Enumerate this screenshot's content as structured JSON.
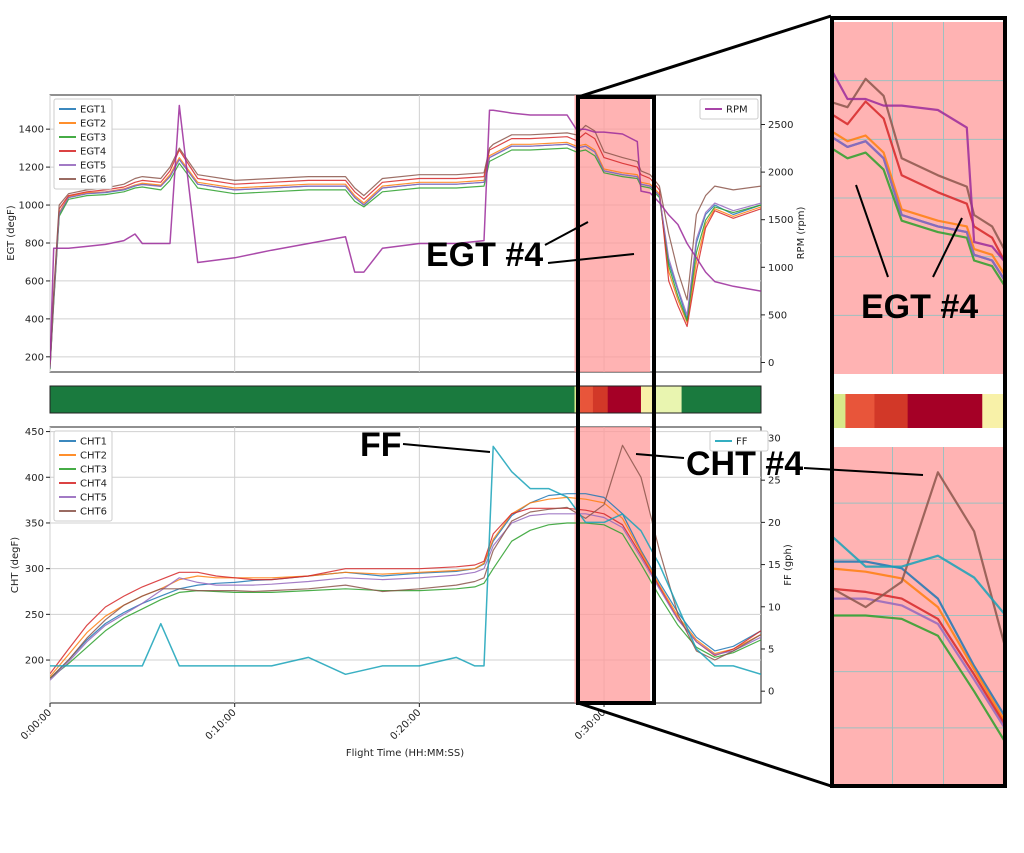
{
  "chart_data": [
    {
      "type": "line",
      "name": "egt-rpm-panel",
      "xlabel": "",
      "ylabel": "EGT (degF)",
      "y2label": "RPM (rpm)",
      "x_unit": "minutes",
      "xlim": [
        0,
        38.5
      ],
      "ylim": [
        120,
        1580
      ],
      "y2lim": [
        -100,
        2810
      ],
      "yticks": [
        200,
        400,
        600,
        800,
        1000,
        1200,
        1400
      ],
      "y2ticks": [
        0,
        500,
        1000,
        1500,
        2000,
        2500
      ],
      "grid": true,
      "legend_left": [
        "EGT1",
        "EGT2",
        "EGT3",
        "EGT4",
        "EGT5",
        "EGT6"
      ],
      "legend_right": [
        "RPM"
      ],
      "highlight_range": [
        28.4,
        32.5
      ],
      "x": [
        0,
        0.2,
        0.5,
        1,
        2,
        3,
        4,
        4.6,
        5,
        6,
        6.5,
        7,
        8,
        10,
        12,
        14,
        16,
        16.5,
        17,
        18,
        20,
        22,
        23.5,
        23.8,
        24,
        25,
        26,
        28,
        28.5,
        29,
        29.5,
        30,
        31,
        31.8,
        32,
        32.5,
        33,
        33.5,
        34,
        34.5,
        35,
        35.5,
        36,
        37,
        38.5
      ],
      "series": [
        {
          "name": "EGT1",
          "color": "#1f77b4",
          "axis": "left",
          "values": [
            140,
            500,
            950,
            1040,
            1060,
            1065,
            1080,
            1100,
            1110,
            1100,
            1150,
            1240,
            1110,
            1080,
            1090,
            1100,
            1100,
            1040,
            1000,
            1090,
            1110,
            1110,
            1120,
            1250,
            1260,
            1310,
            1310,
            1320,
            1300,
            1310,
            1280,
            1180,
            1160,
            1150,
            1110,
            1100,
            1050,
            700,
            550,
            400,
            800,
            950,
            1000,
            950,
            1000
          ]
        },
        {
          "name": "EGT2",
          "color": "#ff7f0e",
          "axis": "left",
          "values": [
            140,
            500,
            960,
            1045,
            1065,
            1070,
            1085,
            1105,
            1115,
            1105,
            1160,
            1250,
            1120,
            1090,
            1100,
            1110,
            1110,
            1050,
            1010,
            1100,
            1120,
            1120,
            1130,
            1260,
            1270,
            1320,
            1320,
            1330,
            1310,
            1320,
            1290,
            1190,
            1170,
            1160,
            1120,
            1110,
            1060,
            650,
            500,
            380,
            700,
            900,
            980,
            940,
            990
          ]
        },
        {
          "name": "EGT3",
          "color": "#2ca02c",
          "axis": "left",
          "values": [
            135,
            480,
            940,
            1030,
            1050,
            1055,
            1070,
            1090,
            1095,
            1080,
            1130,
            1220,
            1090,
            1060,
            1070,
            1080,
            1080,
            1020,
            990,
            1070,
            1090,
            1090,
            1100,
            1230,
            1240,
            1290,
            1290,
            1300,
            1280,
            1290,
            1260,
            1170,
            1150,
            1140,
            1100,
            1090,
            1040,
            680,
            520,
            390,
            750,
            920,
            990,
            960,
            1000
          ]
        },
        {
          "name": "EGT4",
          "color": "#d62728",
          "axis": "left",
          "values": [
            150,
            520,
            980,
            1050,
            1070,
            1080,
            1095,
            1120,
            1130,
            1120,
            1180,
            1290,
            1140,
            1110,
            1120,
            1130,
            1130,
            1070,
            1030,
            1120,
            1140,
            1140,
            1150,
            1290,
            1300,
            1350,
            1350,
            1360,
            1340,
            1380,
            1350,
            1250,
            1220,
            1200,
            1160,
            1140,
            1080,
            600,
            470,
            360,
            650,
            880,
            970,
            930,
            980
          ]
        },
        {
          "name": "EGT5",
          "color": "#9467bd",
          "axis": "left",
          "values": [
            140,
            500,
            955,
            1040,
            1060,
            1068,
            1082,
            1102,
            1108,
            1098,
            1150,
            1240,
            1110,
            1080,
            1090,
            1100,
            1100,
            1040,
            1000,
            1090,
            1110,
            1110,
            1120,
            1250,
            1260,
            1310,
            1310,
            1320,
            1300,
            1310,
            1280,
            1180,
            1160,
            1150,
            1110,
            1100,
            1050,
            720,
            560,
            420,
            820,
            960,
            1010,
            970,
            1010
          ]
        },
        {
          "name": "EGT6",
          "color": "#8c564b",
          "axis": "left",
          "values": [
            160,
            540,
            1000,
            1060,
            1080,
            1090,
            1110,
            1140,
            1150,
            1140,
            1200,
            1300,
            1160,
            1130,
            1140,
            1150,
            1150,
            1090,
            1050,
            1140,
            1160,
            1160,
            1170,
            1300,
            1320,
            1370,
            1370,
            1380,
            1370,
            1420,
            1390,
            1280,
            1250,
            1230,
            1180,
            1160,
            1100,
            850,
            650,
            500,
            950,
            1050,
            1100,
            1080,
            1100
          ]
        },
        {
          "name": "RPM",
          "color": "#9b2a9b",
          "axis": "right",
          "values": [
            0,
            1200,
            1200,
            1200,
            1220,
            1240,
            1280,
            1350,
            1250,
            1250,
            1250,
            2700,
            1050,
            1100,
            1180,
            1250,
            1320,
            950,
            950,
            1200,
            1250,
            1250,
            1280,
            2650,
            2650,
            2620,
            2600,
            2600,
            2450,
            2450,
            2420,
            2420,
            2400,
            2320,
            1800,
            1780,
            1680,
            1550,
            1450,
            1250,
            1100,
            950,
            850,
            800,
            750
          ]
        }
      ],
      "annotations": [
        {
          "text": "EGT #4"
        }
      ]
    },
    {
      "type": "heatmap",
      "name": "anomaly-strip",
      "xlim": [
        0,
        38.5
      ],
      "bands": [
        {
          "from": 0,
          "to": 28.4,
          "color": "#1a7a3e"
        },
        {
          "from": 28.4,
          "to": 28.7,
          "color": "#d8e88a"
        },
        {
          "from": 28.7,
          "to": 29.4,
          "color": "#e8553a"
        },
        {
          "from": 29.4,
          "to": 30.2,
          "color": "#d23828"
        },
        {
          "from": 30.2,
          "to": 32.0,
          "color": "#a50026"
        },
        {
          "from": 32.0,
          "to": 32.8,
          "color": "#f8f1a8"
        },
        {
          "from": 32.8,
          "to": 34.2,
          "color": "#e9f5b0"
        },
        {
          "from": 34.2,
          "to": 38.5,
          "color": "#1a7a3e"
        }
      ]
    },
    {
      "type": "line",
      "name": "cht-ff-panel",
      "xlabel": "Flight Time (HH:MM:SS)",
      "ylabel": "CHT (degF)",
      "y2label": "FF (gph)",
      "x_unit": "minutes",
      "xlim": [
        0,
        38.5
      ],
      "ylim": [
        153,
        455
      ],
      "y2lim": [
        -1.4,
        31.3
      ],
      "yticks": [
        200,
        250,
        300,
        350,
        400,
        450
      ],
      "y2ticks": [
        0,
        5,
        10,
        15,
        20,
        25,
        30
      ],
      "xtick_labels": [
        "0:00:00",
        "0:10:00",
        "0:20:00",
        "0:30:00"
      ],
      "xtick_values": [
        0,
        10,
        20,
        30
      ],
      "grid": true,
      "legend_left": [
        "CHT1",
        "CHT2",
        "CHT3",
        "CHT4",
        "CHT5",
        "CHT6"
      ],
      "legend_right": [
        "FF"
      ],
      "highlight_range": [
        28.4,
        32.5
      ],
      "x": [
        0,
        1,
        2,
        3,
        4,
        5,
        6,
        7,
        8,
        9,
        10,
        11,
        12,
        14,
        16,
        18,
        20,
        22,
        23,
        23.5,
        24,
        25,
        26,
        27,
        28,
        29,
        30,
        31,
        32,
        33,
        34,
        35,
        36,
        37,
        38.5
      ],
      "series": [
        {
          "name": "CHT1",
          "color": "#1f77b4",
          "axis": "left",
          "values": [
            180,
            200,
            222,
            240,
            252,
            262,
            270,
            278,
            282,
            284,
            285,
            287,
            288,
            292,
            296,
            292,
            295,
            297,
            300,
            305,
            330,
            358,
            372,
            380,
            382,
            382,
            378,
            360,
            320,
            285,
            252,
            225,
            210,
            215,
            232
          ]
        },
        {
          "name": "CHT2",
          "color": "#ff7f0e",
          "axis": "left",
          "values": [
            182,
            206,
            230,
            248,
            260,
            270,
            278,
            288,
            292,
            290,
            290,
            290,
            290,
            292,
            296,
            294,
            296,
            298,
            300,
            306,
            332,
            360,
            372,
            376,
            378,
            376,
            372,
            355,
            318,
            282,
            248,
            222,
            207,
            212,
            228
          ]
        },
        {
          "name": "CHT3",
          "color": "#2ca02c",
          "axis": "left",
          "values": [
            180,
            196,
            214,
            232,
            246,
            256,
            266,
            274,
            276,
            275,
            274,
            274,
            274,
            276,
            278,
            276,
            276,
            278,
            280,
            284,
            300,
            330,
            342,
            348,
            350,
            350,
            348,
            338,
            305,
            270,
            238,
            214,
            203,
            208,
            222
          ]
        },
        {
          "name": "CHT4",
          "color": "#d62728",
          "axis": "left",
          "values": [
            185,
            212,
            238,
            258,
            270,
            280,
            288,
            296,
            296,
            292,
            290,
            288,
            288,
            292,
            300,
            300,
            300,
            302,
            304,
            308,
            338,
            360,
            366,
            366,
            366,
            364,
            360,
            348,
            315,
            280,
            245,
            220,
            205,
            212,
            232
          ]
        },
        {
          "name": "CHT5",
          "color": "#9467bd",
          "axis": "left",
          "values": [
            178,
            198,
            220,
            238,
            250,
            262,
            276,
            290,
            285,
            282,
            282,
            282,
            283,
            286,
            290,
            288,
            290,
            293,
            296,
            300,
            325,
            350,
            358,
            360,
            360,
            360,
            356,
            345,
            312,
            278,
            244,
            220,
            206,
            210,
            225
          ]
        },
        {
          "name": "CHT6",
          "color": "#8c564b",
          "axis": "left",
          "values": [
            180,
            200,
            224,
            244,
            260,
            270,
            278,
            278,
            276,
            276,
            276,
            275,
            276,
            278,
            282,
            275,
            278,
            282,
            286,
            290,
            320,
            352,
            362,
            365,
            367,
            355,
            370,
            435,
            400,
            320,
            250,
            210,
            200,
            210,
            228
          ]
        },
        {
          "name": "FF",
          "color": "#17a2b8",
          "axis": "right",
          "values": [
            3,
            3,
            3,
            3,
            3,
            3,
            8,
            3,
            3,
            3,
            3,
            3,
            3,
            4,
            2,
            3,
            3,
            4,
            3,
            3,
            29,
            26,
            24,
            24,
            23,
            20,
            20,
            21,
            19,
            15,
            10,
            5,
            3,
            3,
            2
          ]
        }
      ],
      "annotations": [
        {
          "text": "FF"
        },
        {
          "text": "CHT #4"
        }
      ]
    }
  ],
  "zoom": {
    "egt_label": "EGT #4"
  }
}
